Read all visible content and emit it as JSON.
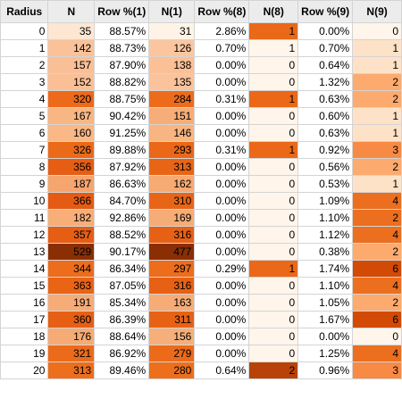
{
  "table": {
    "headers": [
      "Radius",
      "N",
      "Row %(1)",
      "N(1)",
      "Row %(8)",
      "N(8)",
      "Row %(9)",
      "N(9)"
    ],
    "heat_colors": {
      "N": [
        "#fde7d3",
        "#fbc199",
        "#fabf96",
        "#fbbf96",
        "#ec6a1a",
        "#f8b682",
        "#f9b885",
        "#eb6a18",
        "#e65e14",
        "#f5a56e",
        "#e55b13",
        "#f7ae79",
        "#e65e14",
        "#8a2e04",
        "#ed6d1c",
        "#e96415",
        "#f6ac76",
        "#e65f14",
        "#f6ab74",
        "#ec6b1b",
        "#ed6e1c"
      ],
      "N1": [
        "#fff3e8",
        "#fbc69f",
        "#fbc096",
        "#fbc39b",
        "#ec6c1b",
        "#f6ad77",
        "#f8b581",
        "#ea6818",
        "#e96516",
        "#f6aa74",
        "#e96516",
        "#f6ac76",
        "#e76114",
        "#8a2e04",
        "#ed6d1c",
        "#e76114",
        "#f6ac76",
        "#e76214",
        "#f6af7a",
        "#ec6b1b",
        "#ed6f1c"
      ],
      "N8": [
        "#ea6818",
        "#fff5eb",
        "#fff5eb",
        "#fff5eb",
        "#ea6818",
        "#fff5eb",
        "#fff5eb",
        "#ea6818",
        "#fff5eb",
        "#fff5eb",
        "#fff5eb",
        "#fff5eb",
        "#fff5eb",
        "#fff5eb",
        "#ea6818",
        "#fff5eb",
        "#fff5eb",
        "#fff5eb",
        "#fff5eb",
        "#fff5eb",
        "#b84207"
      ],
      "N9": [
        "#fff5eb",
        "#fde2c8",
        "#fde2c8",
        "#fcaa6e",
        "#fcaa6e",
        "#fde2c8",
        "#fde2c8",
        "#f78a45",
        "#fcaa6e",
        "#fde2c8",
        "#eb6f1f",
        "#eb6f1f",
        "#eb6f1f",
        "#fcaa6e",
        "#d24a06",
        "#eb6f1f",
        "#fcaa6e",
        "#d24a06",
        "#fff5eb",
        "#eb6f1f",
        "#f78a45"
      ]
    },
    "rows": [
      [
        "0",
        "35",
        "88.57%",
        "31",
        "2.86%",
        "1",
        "0.00%",
        "0"
      ],
      [
        "1",
        "142",
        "88.73%",
        "126",
        "0.70%",
        "1",
        "0.70%",
        "1"
      ],
      [
        "2",
        "157",
        "87.90%",
        "138",
        "0.00%",
        "0",
        "0.64%",
        "1"
      ],
      [
        "3",
        "152",
        "88.82%",
        "135",
        "0.00%",
        "0",
        "1.32%",
        "2"
      ],
      [
        "4",
        "320",
        "88.75%",
        "284",
        "0.31%",
        "1",
        "0.63%",
        "2"
      ],
      [
        "5",
        "167",
        "90.42%",
        "151",
        "0.00%",
        "0",
        "0.60%",
        "1"
      ],
      [
        "6",
        "160",
        "91.25%",
        "146",
        "0.00%",
        "0",
        "0.63%",
        "1"
      ],
      [
        "7",
        "326",
        "89.88%",
        "293",
        "0.31%",
        "1",
        "0.92%",
        "3"
      ],
      [
        "8",
        "356",
        "87.92%",
        "313",
        "0.00%",
        "0",
        "0.56%",
        "2"
      ],
      [
        "9",
        "187",
        "86.63%",
        "162",
        "0.00%",
        "0",
        "0.53%",
        "1"
      ],
      [
        "10",
        "366",
        "84.70%",
        "310",
        "0.00%",
        "0",
        "1.09%",
        "4"
      ],
      [
        "11",
        "182",
        "92.86%",
        "169",
        "0.00%",
        "0",
        "1.10%",
        "2"
      ],
      [
        "12",
        "357",
        "88.52%",
        "316",
        "0.00%",
        "0",
        "1.12%",
        "4"
      ],
      [
        "13",
        "529",
        "90.17%",
        "477",
        "0.00%",
        "0",
        "0.38%",
        "2"
      ],
      [
        "14",
        "344",
        "86.34%",
        "297",
        "0.29%",
        "1",
        "1.74%",
        "6"
      ],
      [
        "15",
        "363",
        "87.05%",
        "316",
        "0.00%",
        "0",
        "1.10%",
        "4"
      ],
      [
        "16",
        "191",
        "85.34%",
        "163",
        "0.00%",
        "0",
        "1.05%",
        "2"
      ],
      [
        "17",
        "360",
        "86.39%",
        "311",
        "0.00%",
        "0",
        "1.67%",
        "6"
      ],
      [
        "18",
        "176",
        "88.64%",
        "156",
        "0.00%",
        "0",
        "0.00%",
        "0"
      ],
      [
        "19",
        "321",
        "86.92%",
        "279",
        "0.00%",
        "0",
        "1.25%",
        "4"
      ],
      [
        "20",
        "313",
        "89.46%",
        "280",
        "0.64%",
        "2",
        "0.96%",
        "3"
      ]
    ]
  }
}
